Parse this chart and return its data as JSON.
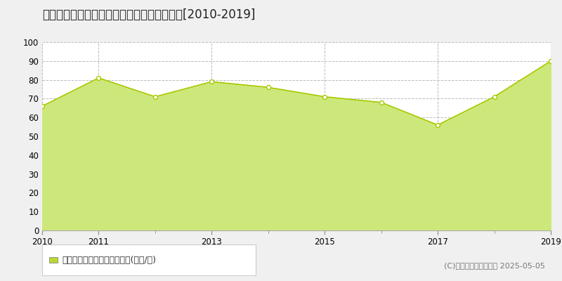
{
  "title": "神戸市垂水区東垂水町　マンション価格推移[2010-2019]",
  "years": [
    2010,
    2011,
    2012,
    2013,
    2014,
    2015,
    2016,
    2017,
    2018,
    2019
  ],
  "values": [
    66,
    81,
    71,
    79,
    76,
    71,
    68,
    56,
    71,
    90
  ],
  "line_color": "#a8c800",
  "fill_color": "#cde87a",
  "marker_color": "#ffffff",
  "marker_edge_color": "#a8c800",
  "bg_color": "#f0f0f0",
  "plot_bg_color": "#ffffff",
  "grid_color": "#bbbbbb",
  "ylim": [
    0,
    100
  ],
  "yticks": [
    0,
    10,
    20,
    30,
    40,
    50,
    60,
    70,
    80,
    90,
    100
  ],
  "xticks": [
    2010,
    2011,
    2013,
    2015,
    2017,
    2019
  ],
  "xlim": [
    2010,
    2019
  ],
  "legend_label": "マンション価格　平均坪単価(万円/坪)",
  "legend_marker_color": "#b8d832",
  "copyright_text": "(C)土地価格ドットコム 2025-05-05",
  "title_fontsize": 12,
  "tick_fontsize": 8.5,
  "legend_fontsize": 9,
  "copyright_fontsize": 8
}
